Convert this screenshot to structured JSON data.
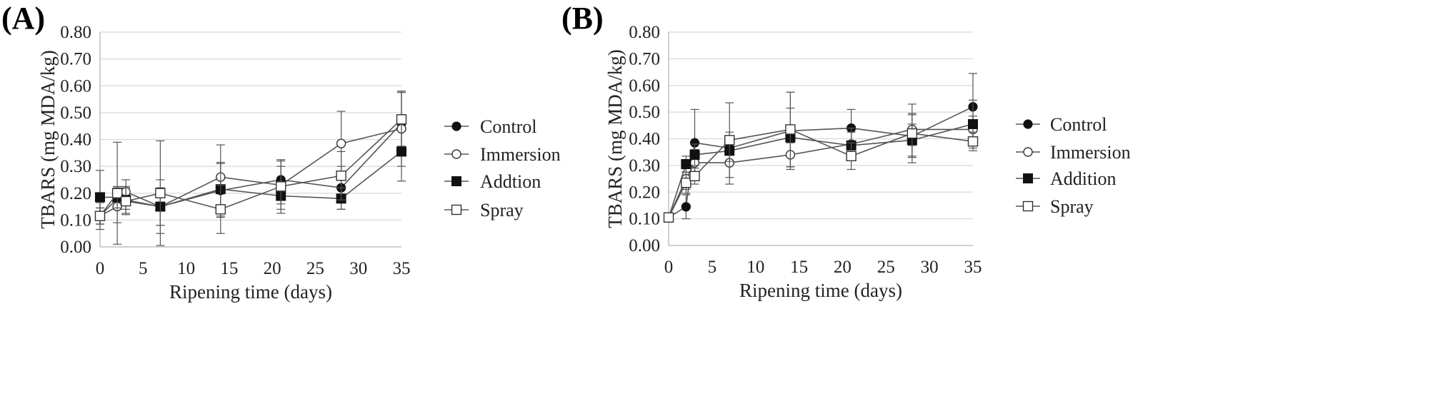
{
  "chart_data": [
    {
      "panel": "(A)",
      "type": "line",
      "xlabel": "Ripening time  (days)",
      "ylabel": "TBARS  (mg MDA/kg)",
      "xlim": [
        0,
        35
      ],
      "ylim": [
        0,
        0.8
      ],
      "xticks": [
        "0",
        "5",
        "10",
        "15",
        "20",
        "25",
        "30",
        "35"
      ],
      "yticks": [
        "0.00",
        "0.10",
        "0.20",
        "0.30",
        "0.40",
        "0.50",
        "0.60",
        "0.70",
        "0.80"
      ],
      "grid": "horizontal",
      "legend": "right",
      "series": [
        {
          "name": "Control",
          "marker": "filled-circle",
          "x": [
            0,
            2,
            3,
            7,
            14,
            21,
            28,
            35
          ],
          "y": [
            0.115,
            0.18,
            0.17,
            0.15,
            0.21,
            0.25,
            0.22,
            0.46
          ],
          "err": [
            0.03,
            0.04,
            0.03,
            0.07,
            0.1,
            0.07,
            0.08,
            0.12
          ]
        },
        {
          "name": "Immersion",
          "marker": "open-circle",
          "x": [
            0,
            2,
            3,
            7,
            14,
            21,
            28,
            35
          ],
          "y": [
            0.115,
            0.15,
            0.205,
            0.15,
            0.26,
            0.23,
            0.385,
            0.44
          ],
          "err": [
            0.03,
            0.06,
            0.045,
            0.07,
            0.12,
            0.07,
            0.12,
            0.14
          ]
        },
        {
          "name": "Addtion",
          "marker": "filled-square",
          "x": [
            0,
            2,
            3,
            7,
            14,
            21,
            28,
            35
          ],
          "y": [
            0.185,
            0.185,
            0.175,
            0.15,
            0.215,
            0.19,
            0.18,
            0.355
          ],
          "err": [
            0.1,
            0.04,
            0.05,
            0.1,
            0.1,
            0.05,
            0.04,
            0.11
          ]
        },
        {
          "name": "Spray",
          "marker": "open-square",
          "x": [
            0,
            2,
            3,
            7,
            14,
            21,
            28,
            35
          ],
          "y": [
            0.115,
            0.2,
            0.17,
            0.2,
            0.14,
            0.225,
            0.265,
            0.475
          ],
          "err": [
            0.05,
            0.19,
            0.05,
            0.195,
            0.09,
            0.1,
            0.09,
            0.1
          ]
        }
      ]
    },
    {
      "panel": "(B)",
      "type": "line",
      "xlabel": "Ripening time  (days)",
      "ylabel": "TBARS  (mg MDA/kg)",
      "xlim": [
        0,
        35
      ],
      "ylim": [
        0,
        0.8
      ],
      "xticks": [
        "0",
        "5",
        "10",
        "15",
        "20",
        "25",
        "30",
        "35"
      ],
      "yticks": [
        "0.00",
        "0.10",
        "0.20",
        "0.30",
        "0.40",
        "0.50",
        "0.60",
        "0.70",
        "0.80"
      ],
      "grid": "horizontal",
      "legend": "right",
      "series": [
        {
          "name": "Control",
          "marker": "filled-circle",
          "x": [
            0,
            2,
            3,
            7,
            14,
            21,
            28,
            35
          ],
          "y": [
            0.105,
            0.145,
            0.385,
            0.365,
            0.43,
            0.44,
            0.41,
            0.52
          ],
          "err": [
            0.01,
            0.045,
            0.125,
            0.06,
            0.145,
            0.07,
            0.08,
            0.125
          ]
        },
        {
          "name": "Immersion",
          "marker": "open-circle",
          "x": [
            0,
            2,
            3,
            7,
            14,
            21,
            28,
            35
          ],
          "y": [
            0.105,
            0.25,
            0.31,
            0.31,
            0.34,
            0.38,
            0.435,
            0.435
          ],
          "err": [
            0.01,
            0.04,
            0.05,
            0.08,
            0.045,
            0.06,
            0.06,
            0.05
          ]
        },
        {
          "name": "Addition",
          "marker": "filled-square",
          "x": [
            0,
            2,
            3,
            7,
            14,
            21,
            28,
            35
          ],
          "y": [
            0.105,
            0.305,
            0.34,
            0.355,
            0.405,
            0.375,
            0.395,
            0.455
          ],
          "err": [
            0.01,
            0.03,
            0.04,
            0.04,
            0.11,
            0.05,
            0.06,
            0.09
          ]
        },
        {
          "name": "Spray",
          "marker": "open-square",
          "x": [
            0,
            2,
            3,
            7,
            14,
            21,
            28,
            35
          ],
          "y": [
            0.105,
            0.235,
            0.26,
            0.395,
            0.435,
            0.335,
            0.42,
            0.39
          ],
          "err": [
            0.01,
            0.04,
            0.03,
            0.14,
            0.14,
            0.05,
            0.11,
            0.035
          ]
        }
      ]
    }
  ]
}
